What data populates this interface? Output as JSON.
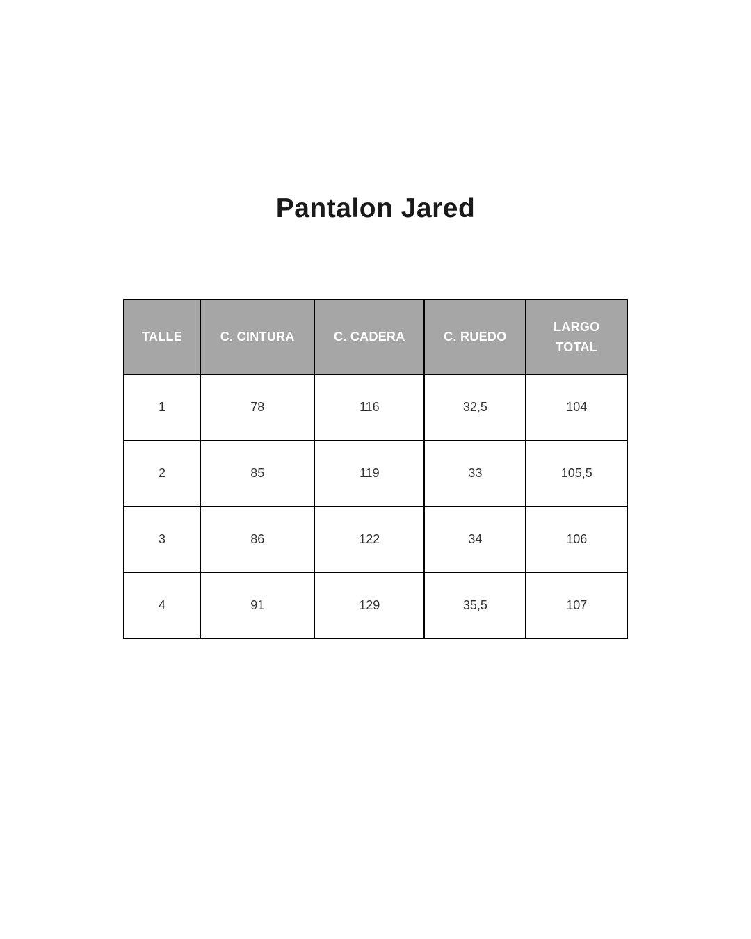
{
  "page": {
    "title": "Pantalon Jared"
  },
  "table": {
    "headers": [
      "TALLE",
      "C. CINTURA",
      "C. CADERA",
      "C. RUEDO",
      "LARGO\nTOTAL"
    ],
    "rows": [
      [
        "1",
        "78",
        "116",
        "32,5",
        "104"
      ],
      [
        "2",
        "85",
        "119",
        "33",
        "105,5"
      ],
      [
        "3",
        "86",
        "122",
        "34",
        "106"
      ],
      [
        "4",
        "91",
        "129",
        "35,5",
        "107"
      ]
    ]
  },
  "colors": {
    "page_background": "#ffffff",
    "header_background": "#a6a6a6",
    "header_text": "#ffffff",
    "cell_text": "#333333",
    "border": "#000000"
  }
}
